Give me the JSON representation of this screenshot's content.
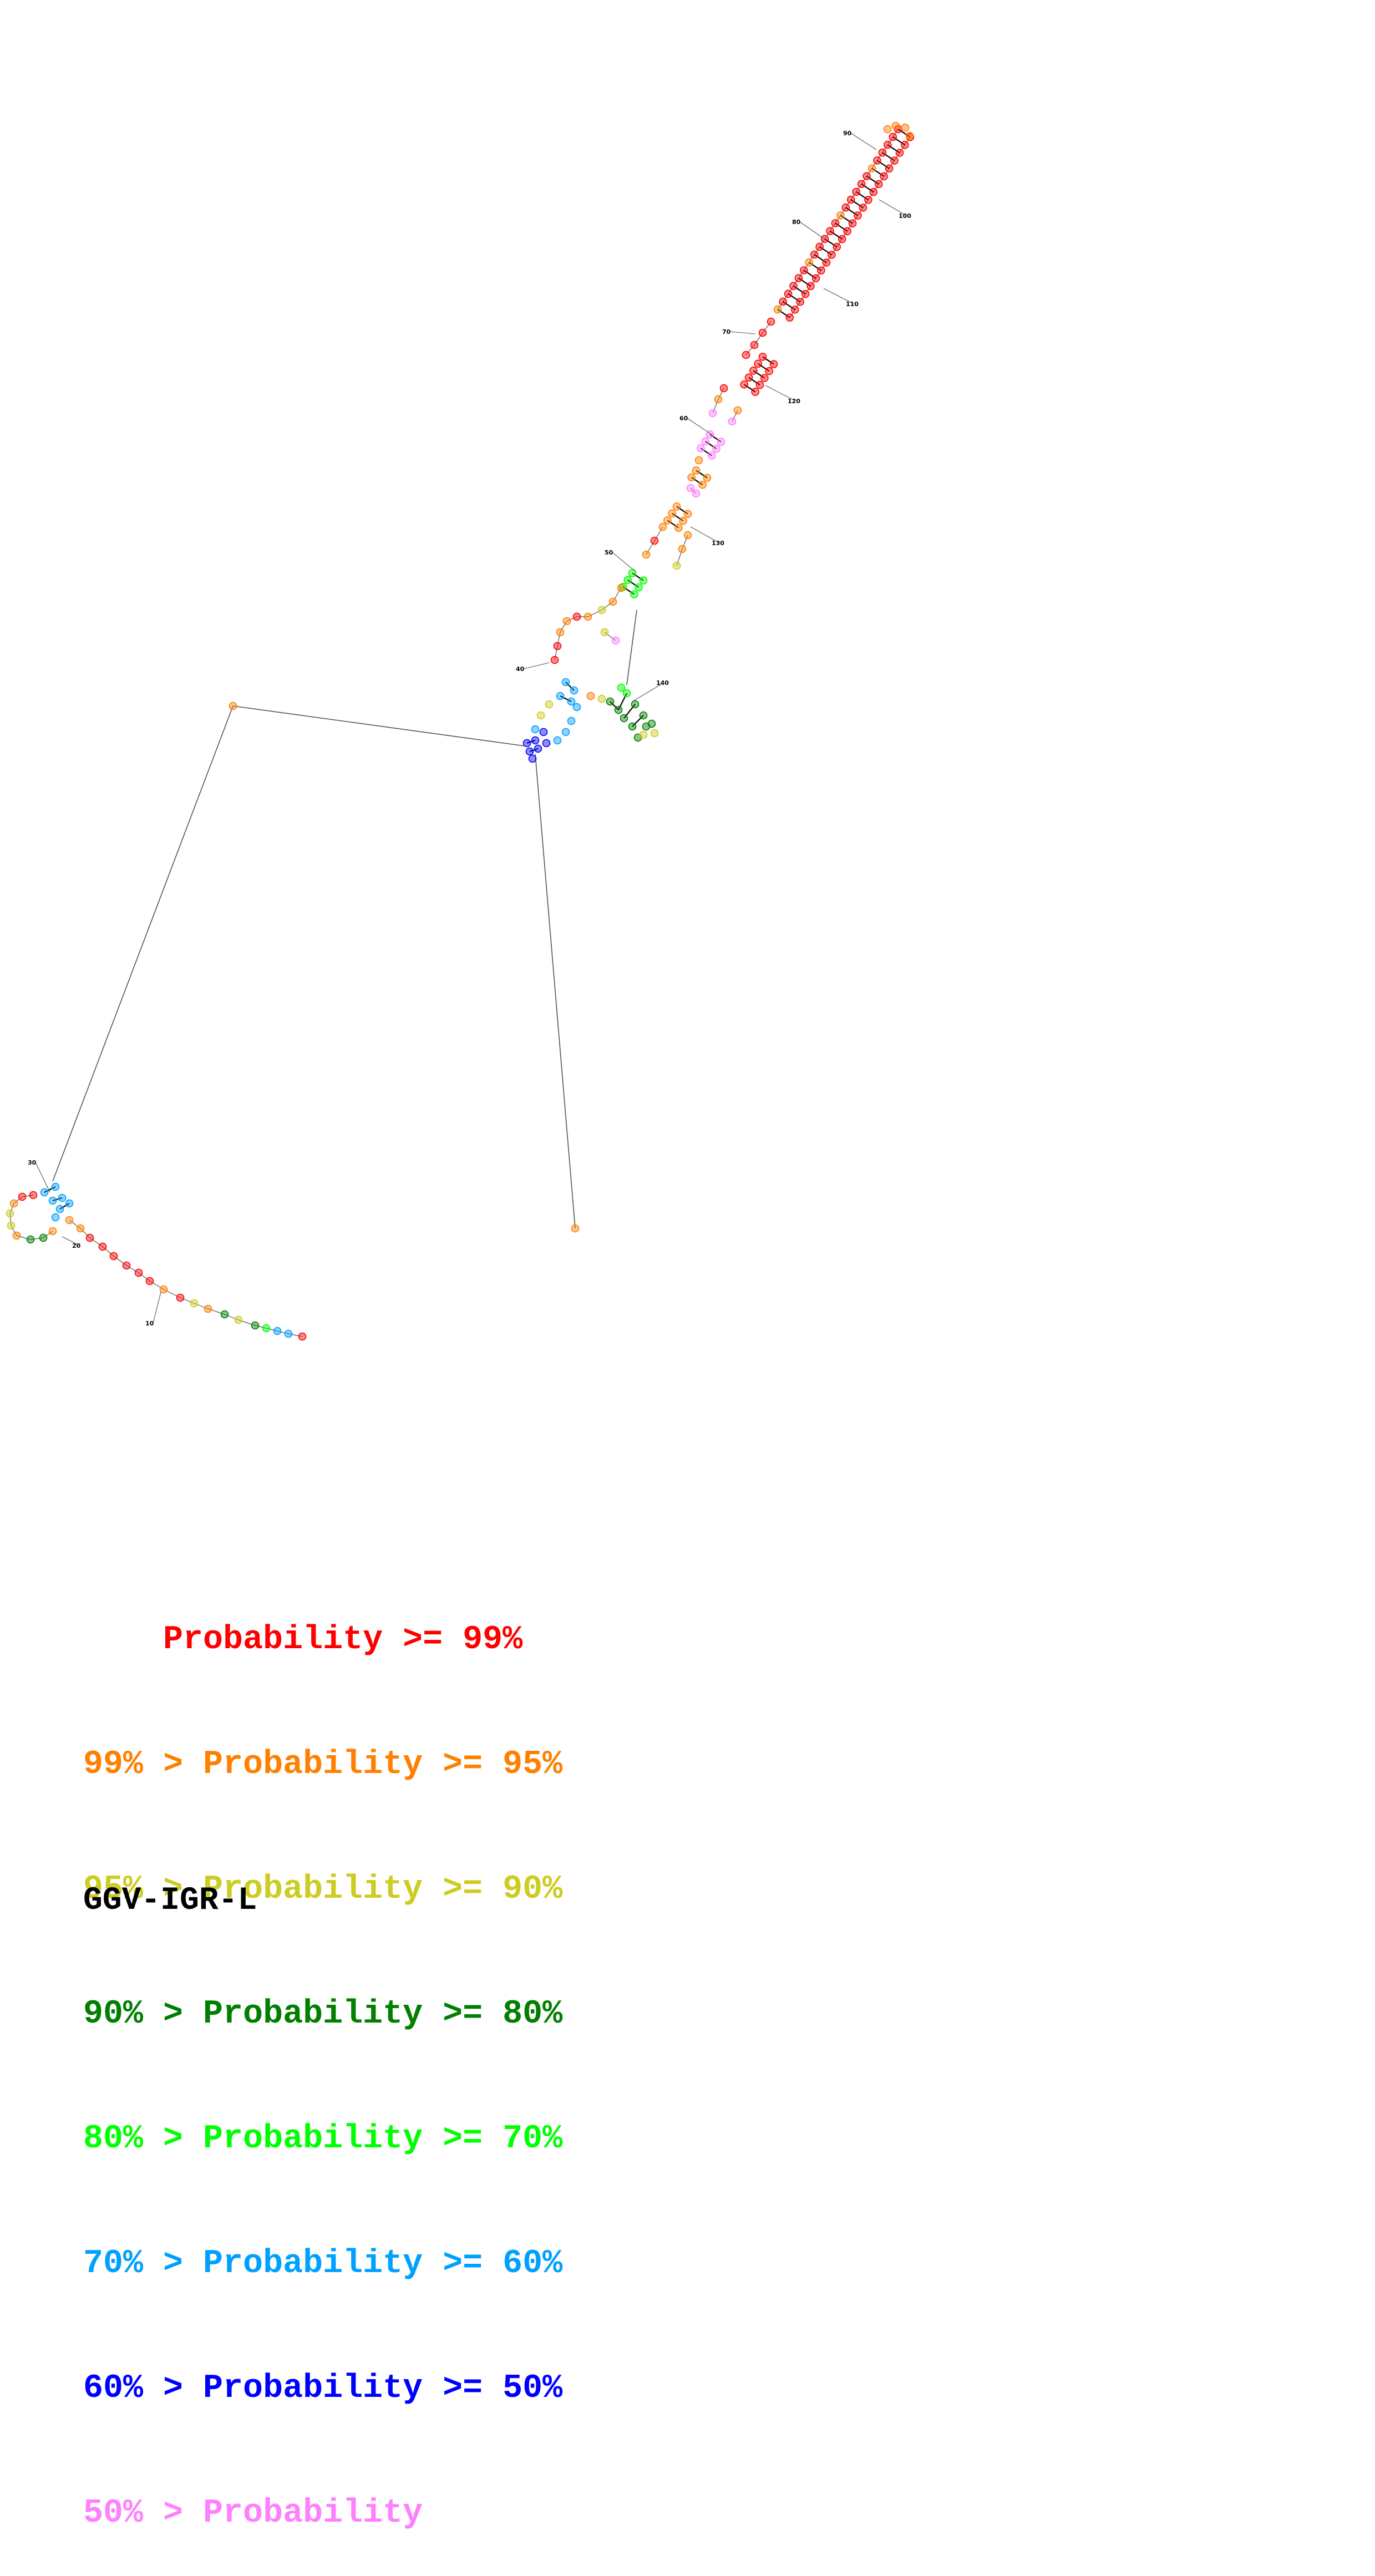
{
  "title": "GGV-IGR-L",
  "colors": {
    "p99": "#ff0000",
    "p95": "#ff8000",
    "p90": "#cccc22",
    "p80": "#007f00",
    "p70": "#00ff00",
    "p60": "#00a0ff",
    "p50": "#0000ff",
    "p0": "#ff80ff",
    "lines": "#555555",
    "pair": "#000000"
  },
  "legend": [
    {
      "prefix": "    ",
      "main": "Probability >= 99%",
      "color": "#ff0000"
    },
    {
      "prefix": "99% > ",
      "main": "Probability >= 95%",
      "color": "#ff8000"
    },
    {
      "prefix": "95% > ",
      "main": "Probability >= 90%",
      "color": "#cccc22"
    },
    {
      "prefix": "90% > ",
      "main": "Probability >= 80%",
      "color": "#007f00"
    },
    {
      "prefix": "80% > ",
      "main": "Probability >= 70%",
      "color": "#00ff00"
    },
    {
      "prefix": "70% > ",
      "main": "Probability >= 60%",
      "color": "#00a0ff"
    },
    {
      "prefix": "60% > ",
      "main": "Probability >= 50%",
      "color": "#0000ff"
    },
    {
      "prefix": "50% > ",
      "main": "Probability",
      "color": "#ff80ff"
    }
  ],
  "nucleotide_labels": [
    "10",
    "20",
    "30",
    "40",
    "50",
    "60",
    "70",
    "80",
    "90",
    "100",
    "110",
    "120",
    "130",
    "140"
  ]
}
